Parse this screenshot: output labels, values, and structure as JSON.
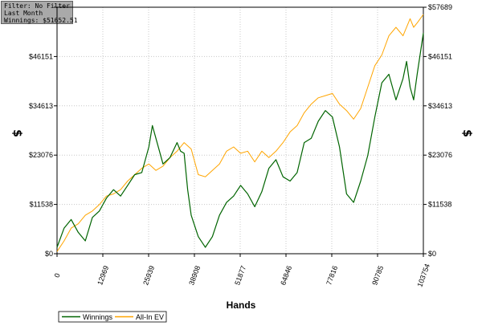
{
  "info_box": {
    "filter": "Filter: No Filter",
    "period": "Last Month",
    "winnings": "Winnings: $51652.51"
  },
  "colors": {
    "winnings": "#006400",
    "all_in_ev": "#ffa500",
    "grid": "#c8c8c8",
    "info_box_bg": "#a9a9a9"
  },
  "chart_data": {
    "type": "line",
    "xlabel": "Hands",
    "ylabel_left": "$",
    "ylabel_right": "$",
    "xlim": [
      0,
      103754
    ],
    "ylim": [
      0,
      57689
    ],
    "x_ticks": [
      0,
      12969,
      25939,
      38908,
      51877,
      64846,
      77816,
      90785,
      103754
    ],
    "x_tick_labels": [
      "0",
      "12969",
      "25939",
      "38908",
      "51877",
      "64846",
      "77816",
      "90785",
      "103754"
    ],
    "y_ticks": [
      0,
      11538,
      23076,
      34613,
      46151,
      57689
    ],
    "y_tick_labels_left": [
      "$0",
      "$11538",
      "$23076",
      "$34613",
      "$46151",
      ""
    ],
    "y_tick_labels_right": [
      "$0",
      "$11538",
      "$23076",
      "$34613",
      "$46151",
      "$57689"
    ],
    "grid": true,
    "legend_position": "bottom-left",
    "series": [
      {
        "name": "Winnings",
        "color": "#006400",
        "x": [
          0,
          2000,
          4000,
          6000,
          8000,
          10000,
          12000,
          14000,
          16000,
          18000,
          20000,
          22000,
          24000,
          26000,
          27000,
          28000,
          30000,
          32000,
          34000,
          35000,
          36000,
          37000,
          38000,
          40000,
          42000,
          44000,
          46000,
          48000,
          50000,
          52000,
          54000,
          56000,
          58000,
          60000,
          62000,
          64000,
          66000,
          68000,
          70000,
          72000,
          74000,
          76000,
          78000,
          80000,
          82000,
          84000,
          86000,
          88000,
          90000,
          92000,
          94000,
          96000,
          98000,
          99000,
          100000,
          101000,
          102000,
          103754
        ],
        "y": [
          1500,
          6000,
          8000,
          5000,
          3000,
          8500,
          10000,
          13000,
          15000,
          13500,
          16000,
          18500,
          19000,
          25000,
          30000,
          27000,
          21000,
          22500,
          26000,
          24000,
          23500,
          15000,
          9000,
          4000,
          1500,
          4000,
          9000,
          12000,
          13500,
          16000,
          14000,
          11000,
          14500,
          20000,
          22000,
          18000,
          17000,
          19000,
          26000,
          27000,
          31000,
          33500,
          32000,
          25000,
          14000,
          12000,
          17000,
          23000,
          32000,
          40000,
          42000,
          36000,
          41000,
          45000,
          39000,
          36000,
          42000,
          51652
        ]
      },
      {
        "name": "All-In EV",
        "color": "#ffa500",
        "x": [
          0,
          2000,
          4000,
          6000,
          8000,
          10000,
          12000,
          14000,
          16000,
          18000,
          20000,
          22000,
          24000,
          26000,
          28000,
          30000,
          32000,
          34000,
          36000,
          38000,
          40000,
          42000,
          44000,
          46000,
          48000,
          50000,
          52000,
          54000,
          56000,
          58000,
          60000,
          62000,
          64000,
          66000,
          68000,
          70000,
          72000,
          74000,
          76000,
          78000,
          80000,
          82000,
          84000,
          86000,
          88000,
          90000,
          92000,
          94000,
          96000,
          98000,
          100000,
          101000,
          102000,
          103754
        ],
        "y": [
          500,
          3000,
          6000,
          7000,
          9000,
          10000,
          11500,
          13500,
          14000,
          15000,
          17000,
          18500,
          20000,
          21000,
          19500,
          20500,
          22500,
          24000,
          26000,
          24500,
          18500,
          18000,
          19500,
          21000,
          24000,
          25000,
          23500,
          24000,
          21500,
          24000,
          22500,
          24000,
          26000,
          28500,
          30000,
          33000,
          35000,
          36500,
          37000,
          37500,
          35000,
          33500,
          31500,
          34000,
          39000,
          44000,
          46500,
          51000,
          53000,
          51000,
          55000,
          53000,
          54000,
          56000
        ]
      }
    ]
  }
}
